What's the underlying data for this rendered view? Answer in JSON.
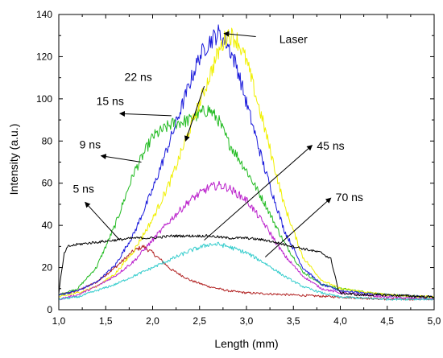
{
  "chart_data": {
    "type": "line",
    "xlabel": "Length (mm)",
    "ylabel": "Intensity (a.u.)",
    "xlim": [
      1.0,
      5.0
    ],
    "ylim": [
      0,
      140
    ],
    "xticks": [
      "1,0",
      "1,5",
      "2,0",
      "2,5",
      "3,0",
      "3,5",
      "4,0",
      "4,5",
      "5,0"
    ],
    "yticks": [
      "0",
      "20",
      "40",
      "60",
      "80",
      "100",
      "120",
      "140"
    ],
    "grid": false,
    "legend": "none (inline annotations)",
    "series": [
      {
        "name": "5 ns",
        "color": "#b22222",
        "x": [
          1.0,
          1.2,
          1.4,
          1.6,
          1.8,
          1.9,
          2.0,
          2.2,
          2.4,
          2.6,
          2.8,
          3.0,
          3.5,
          4.0,
          4.5,
          5.0
        ],
        "y": [
          7,
          9,
          13,
          20,
          28,
          30,
          27,
          19,
          14,
          11,
          9,
          8,
          7,
          6,
          5,
          5
        ]
      },
      {
        "name": "9 ns",
        "color": "#22bb22",
        "x": [
          1.0,
          1.2,
          1.4,
          1.6,
          1.8,
          2.0,
          2.2,
          2.4,
          2.5,
          2.6,
          2.7,
          2.8,
          3.0,
          3.2,
          3.4,
          3.6,
          3.8,
          4.0,
          4.5,
          5.0
        ],
        "y": [
          7,
          10,
          20,
          40,
          65,
          82,
          88,
          90,
          93,
          95,
          90,
          80,
          66,
          50,
          32,
          18,
          12,
          10,
          7,
          6
        ]
      },
      {
        "name": "15 ns",
        "color": "#1a1adb",
        "x": [
          1.0,
          1.2,
          1.4,
          1.6,
          1.8,
          2.0,
          2.2,
          2.4,
          2.5,
          2.6,
          2.7,
          2.8,
          2.9,
          3.0,
          3.2,
          3.4,
          3.6,
          3.8,
          4.0,
          4.5,
          5.0
        ],
        "y": [
          7,
          9,
          13,
          21,
          36,
          57,
          82,
          108,
          120,
          127,
          131,
          126,
          115,
          98,
          66,
          38,
          20,
          12,
          9,
          7,
          6
        ]
      },
      {
        "name": "22 ns",
        "color": "#f0f000",
        "x": [
          1.0,
          1.2,
          1.4,
          1.6,
          1.8,
          2.0,
          2.2,
          2.4,
          2.6,
          2.7,
          2.8,
          2.9,
          3.0,
          3.2,
          3.4,
          3.6,
          3.8,
          4.0,
          4.5,
          5.0
        ],
        "y": [
          6,
          8,
          11,
          17,
          28,
          43,
          62,
          86,
          110,
          122,
          131,
          128,
          118,
          85,
          50,
          25,
          14,
          10,
          7,
          6
        ]
      },
      {
        "name": "45 ns",
        "color": "#bb22cc",
        "x": [
          1.0,
          1.2,
          1.4,
          1.6,
          1.8,
          2.0,
          2.2,
          2.4,
          2.6,
          2.7,
          2.8,
          3.0,
          3.2,
          3.4,
          3.6,
          3.8,
          4.0,
          4.5,
          5.0
        ],
        "y": [
          5,
          7,
          11,
          16,
          23,
          33,
          43,
          52,
          58,
          59,
          58,
          52,
          40,
          26,
          16,
          10,
          8,
          6,
          5
        ]
      },
      {
        "name": "70 ns",
        "color": "#33cccc",
        "x": [
          1.0,
          1.2,
          1.4,
          1.6,
          1.8,
          2.0,
          2.2,
          2.4,
          2.6,
          2.7,
          2.8,
          3.0,
          3.2,
          3.4,
          3.6,
          3.8,
          4.0,
          4.5,
          5.0
        ],
        "y": [
          5,
          6,
          9,
          12,
          16,
          20,
          24,
          28,
          31,
          31,
          30,
          27,
          22,
          16,
          11,
          8,
          6,
          5,
          5
        ]
      },
      {
        "name": "Laser",
        "color": "#000000",
        "x": [
          1.0,
          1.03,
          1.06,
          1.1,
          1.2,
          1.4,
          1.6,
          1.8,
          2.0,
          2.2,
          2.4,
          2.6,
          2.8,
          3.0,
          3.2,
          3.4,
          3.6,
          3.8,
          3.9,
          3.95,
          3.98,
          4.0,
          4.2,
          4.5,
          5.0
        ],
        "y": [
          8,
          18,
          27,
          30,
          31,
          32,
          33,
          34,
          34,
          35,
          35,
          35,
          34,
          34,
          33,
          31,
          29,
          27,
          24,
          15,
          9,
          8,
          7,
          7,
          6
        ]
      }
    ],
    "annotations": [
      {
        "text": "Laser",
        "x": 3.1,
        "y": 129.5,
        "tx": 3.35,
        "ty": 126.5,
        "ax": 2.76,
        "ay": 131
      },
      {
        "text": "22 ns",
        "x": 2.55,
        "y": 106,
        "tx": 1.7,
        "ty": 108.5,
        "ax": 2.35,
        "ay": 80
      },
      {
        "text": "15 ns",
        "x": 2.2,
        "y": 92,
        "tx": 1.4,
        "ty": 97,
        "ax": 1.65,
        "ay": 93
      },
      {
        "text": "9 ns",
        "x": 1.88,
        "y": 70,
        "tx": 1.22,
        "ty": 76.5,
        "ax": 1.45,
        "ay": 73
      },
      {
        "text": "5 ns",
        "x": 1.65,
        "y": 33,
        "tx": 1.15,
        "ty": 55.5,
        "ax": 1.28,
        "ay": 51
      },
      {
        "text": "45 ns",
        "x": 2.55,
        "y": 33,
        "tx": 3.75,
        "ty": 76,
        "ax": 3.7,
        "ay": 78
      },
      {
        "text": "70 ns",
        "x": 3.2,
        "y": 25,
        "tx": 3.95,
        "ty": 51.5,
        "ax": 3.9,
        "ay": 53
      }
    ]
  }
}
